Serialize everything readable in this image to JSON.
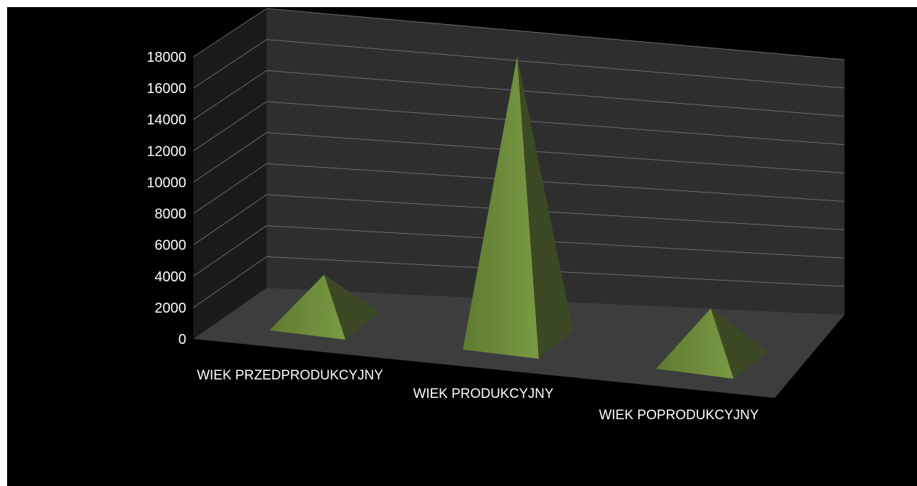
{
  "chart_data": {
    "type": "bar",
    "bar_shape": "pyramid-3d",
    "categories": [
      "WIEK PRZEDPRODUKCYJNY",
      "WIEK PRODUKCYJNY",
      "WIEK POPRODUKCYJNY"
    ],
    "values": [
      3100,
      17000,
      3400
    ],
    "ylim": [
      0,
      18000
    ],
    "yticks": [
      "0",
      "2000",
      "4000",
      "6000",
      "8000",
      "10000",
      "12000",
      "14000",
      "16000",
      "18000"
    ],
    "grid": true,
    "legend": "none",
    "colors": {
      "background": "#000000",
      "back_wall": "#2e2e2e",
      "side_wall": "#1a1a1a",
      "floor": "#3d3d3d",
      "gridline": "#6e6e6e",
      "pyramid_light": "#7a9a44",
      "pyramid_mid": "#5e7a30",
      "pyramid_dark": "#3b4a24",
      "text": "#ffffff"
    }
  }
}
